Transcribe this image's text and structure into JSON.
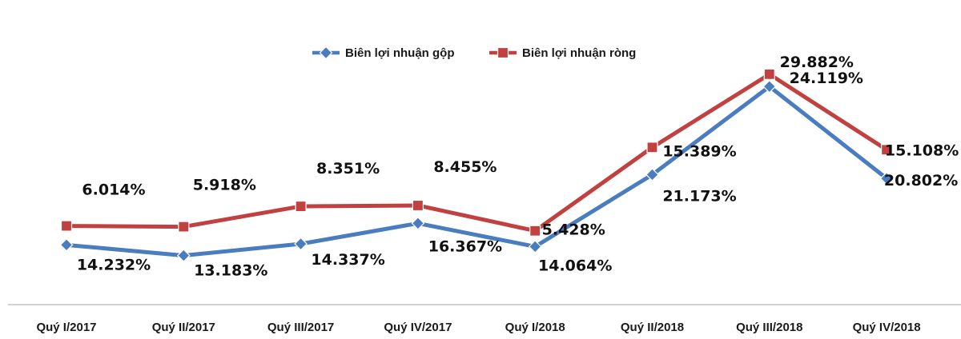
{
  "chart_data": {
    "type": "line",
    "title": "",
    "xlabel": "",
    "ylabel": "",
    "ylim": [
      0,
      35
    ],
    "grid": false,
    "legend_position": "top-center",
    "categories": [
      "Quý I/2017",
      "Quý II/2017",
      "Quý III/2017",
      "Quý IV/2017",
      "Quý I/2018",
      "Quý II/2018",
      "Quý III/2018",
      "Quý IV/2018"
    ],
    "series": [
      {
        "name": "Biên lợi nhuận gộp",
        "color": "#4a7cc0",
        "marker": "diamond",
        "values": [
          14.232,
          13.183,
          14.337,
          16.367,
          14.064,
          21.173,
          29.882,
          20.802
        ],
        "labels": [
          "14.232%",
          "13.183%",
          "14.337%",
          "16.367%",
          "14.064%",
          "21.173%",
          "29.882%",
          "20.802%"
        ]
      },
      {
        "name": "Biên lợi nhuận ròng",
        "color": "#c0413f",
        "marker": "square",
        "values": [
          6.014,
          5.918,
          8.351,
          8.455,
          5.428,
          15.389,
          24.119,
          15.108
        ],
        "labels": [
          "6.014%",
          "5.918%",
          "8.351%",
          "8.455%",
          "5.428%",
          "15.389%",
          "24.119%",
          "15.108%"
        ]
      }
    ]
  }
}
